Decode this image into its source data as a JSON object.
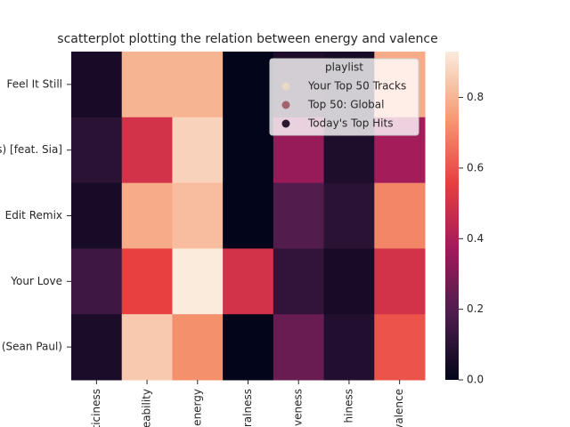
{
  "chart_data": {
    "type": "heatmap",
    "title": "scatterplot plotting the relation between energy and valence",
    "rows": [
      "Feel It Still",
      "s) [feat. Sia]",
      "Edit Remix",
      "Your Love",
      "(Sean Paul)"
    ],
    "columns": [
      "ticiness",
      "eability",
      "energy",
      "ralness",
      "veness",
      "hiness",
      "valence"
    ],
    "values": [
      [
        0.05,
        0.8,
        0.8,
        0.0,
        0.07,
        0.05,
        0.78
      ],
      [
        0.1,
        0.5,
        0.87,
        0.0,
        0.35,
        0.07,
        0.38
      ],
      [
        0.05,
        0.78,
        0.82,
        0.0,
        0.2,
        0.1,
        0.7
      ],
      [
        0.15,
        0.56,
        0.93,
        0.5,
        0.12,
        0.05,
        0.5
      ],
      [
        0.06,
        0.85,
        0.72,
        0.0,
        0.25,
        0.08,
        0.6
      ]
    ],
    "colorscale": [
      "#03051a",
      "#4c1d4b",
      "#a11a5b",
      "#e83f3f",
      "#f69c73",
      "#faebdd"
    ],
    "clim": [
      0,
      0.93
    ],
    "cticks": [
      {
        "value": 0,
        "label": "0.0"
      },
      0.2,
      0.4,
      0.6,
      0.8
    ],
    "legend": {
      "title": "playlist",
      "corner": "upper right",
      "entries": [
        {
          "name": "Your Top 50 Tracks",
          "color": "#e8d9c4"
        },
        {
          "name": "Top 50: Global",
          "color": "#a5636f"
        },
        {
          "name": "Today's Top Hits",
          "color": "#2b1a2f"
        }
      ]
    }
  }
}
